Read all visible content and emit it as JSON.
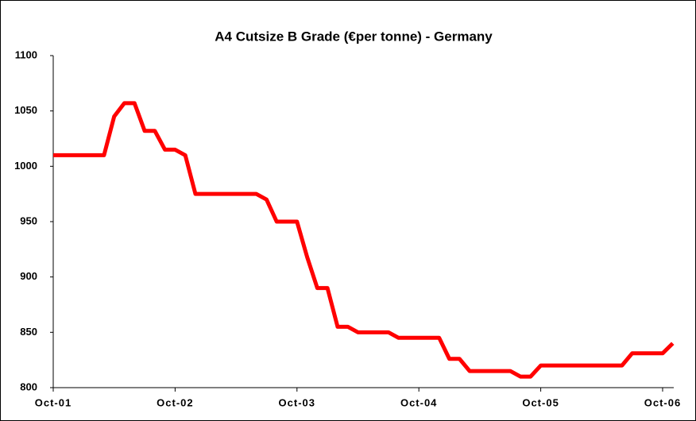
{
  "chart_data": {
    "type": "line",
    "title": "A4 Cutsize B Grade (€per tonne) - Germany",
    "categories": [
      "Oct-01",
      null,
      null,
      null,
      null,
      null,
      null,
      null,
      null,
      null,
      null,
      null,
      "Oct-02",
      null,
      null,
      null,
      null,
      null,
      null,
      null,
      null,
      null,
      null,
      null,
      "Oct-03",
      null,
      null,
      null,
      null,
      null,
      null,
      null,
      null,
      null,
      null,
      null,
      "Oct-04",
      null,
      null,
      null,
      null,
      null,
      null,
      null,
      null,
      null,
      null,
      null,
      "Oct-05",
      null,
      null,
      null,
      null,
      null,
      null,
      null,
      null,
      null,
      null,
      null,
      "Oct-06",
      null
    ],
    "series": [
      {
        "name": "A4 Cutsize B Grade",
        "color": "#ff0000",
        "values": [
          1010,
          1010,
          1010,
          1010,
          1010,
          1010,
          1045,
          1057,
          1057,
          1032,
          1032,
          1015,
          1015,
          1010,
          975,
          975,
          975,
          975,
          975,
          975,
          975,
          970,
          950,
          950,
          950,
          918,
          890,
          890,
          855,
          855,
          850,
          850,
          850,
          850,
          845,
          845,
          845,
          845,
          845,
          826,
          826,
          815,
          815,
          815,
          815,
          815,
          810,
          810,
          820,
          820,
          820,
          820,
          820,
          820,
          820,
          820,
          820,
          831,
          831,
          831,
          831,
          840
        ]
      }
    ],
    "ylim": [
      800,
      1100
    ],
    "yticks": [
      800,
      850,
      900,
      950,
      1000,
      1050,
      1100
    ],
    "grid": false
  }
}
